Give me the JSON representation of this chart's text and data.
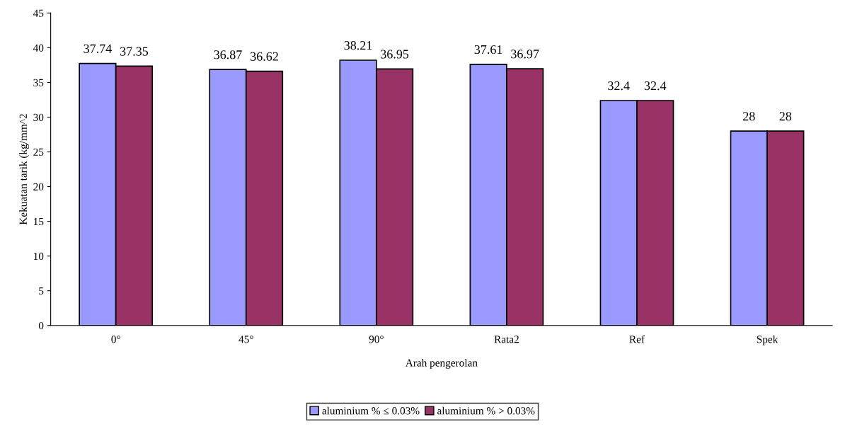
{
  "chart_data": {
    "type": "bar",
    "xlabel": "Arah pengerolan",
    "ylabel": "Kekuatan tarik (kg/mm^2",
    "categories": [
      "0°",
      "45°",
      "90°",
      "Rata2",
      "Ref",
      "Spek"
    ],
    "series": [
      {
        "name": "aluminium % ≤ 0.03%",
        "color": "#9999ff",
        "values": [
          37.74,
          36.87,
          38.21,
          37.61,
          32.4,
          28
        ]
      },
      {
        "name": "aluminium % > 0.03%",
        "color": "#993366",
        "values": [
          37.35,
          36.62,
          36.95,
          36.97,
          32.4,
          28
        ]
      }
    ],
    "ylim": [
      0,
      45
    ],
    "yticks": [
      0,
      5,
      10,
      15,
      20,
      25,
      30,
      35,
      40,
      45
    ],
    "data_labels": true,
    "grid": false,
    "legend": "bottom"
  }
}
